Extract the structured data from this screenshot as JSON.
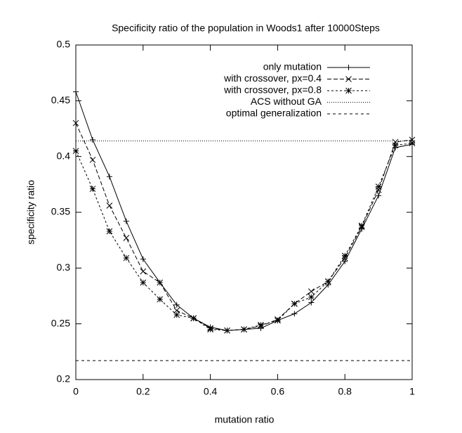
{
  "chart_data": {
    "type": "line",
    "title": "Specificity ratio of the population in Woods1 after 10000Steps",
    "x_label": "mutation ratio",
    "y_label": "specificity ratio",
    "x": [
      0,
      0.05,
      0.1,
      0.15,
      0.2,
      0.25,
      0.3,
      0.35,
      0.4,
      0.45,
      0.5,
      0.55,
      0.6,
      0.65,
      0.7,
      0.75,
      0.8,
      0.85,
      0.9,
      0.95,
      1
    ],
    "xlim": [
      0,
      1
    ],
    "xticks": [
      0,
      0.2,
      0.4,
      0.6,
      0.8,
      1
    ],
    "ylim": [
      0.2,
      0.5
    ],
    "yticks": [
      0.2,
      0.25,
      0.3,
      0.35,
      0.4,
      0.45,
      0.5
    ],
    "legend": "top-right",
    "series": [
      {
        "name": "only mutation",
        "color": "#000000",
        "dash": "none",
        "marker": "plus",
        "values": [
          0.458,
          0.415,
          0.382,
          0.342,
          0.308,
          0.287,
          0.267,
          0.255,
          0.247,
          0.244,
          0.245,
          0.246,
          0.253,
          0.259,
          0.269,
          0.285,
          0.306,
          0.335,
          0.365,
          0.408,
          0.411
        ]
      },
      {
        "name": "with crossover, px=0.4",
        "color": "#000000",
        "dash": "6,3",
        "marker": "cross",
        "values": [
          0.43,
          0.397,
          0.356,
          0.327,
          0.297,
          0.287,
          0.262,
          0.255,
          0.246,
          0.244,
          0.245,
          0.248,
          0.254,
          0.268,
          0.279,
          0.288,
          0.309,
          0.337,
          0.37,
          0.413,
          0.415
        ]
      },
      {
        "name": "with crossover, px=0.8",
        "color": "#000000",
        "dash": "3,3",
        "marker": "star",
        "values": [
          0.405,
          0.371,
          0.333,
          0.309,
          0.287,
          0.272,
          0.258,
          0.255,
          0.245,
          0.244,
          0.245,
          0.249,
          0.253,
          0.268,
          0.274,
          0.288,
          0.311,
          0.338,
          0.373,
          0.41,
          0.412
        ]
      },
      {
        "name": "ACS without GA",
        "color": "#000000",
        "dash": "1,2",
        "marker": "none",
        "x": [
          0,
          1
        ],
        "values": [
          0.414,
          0.414
        ]
      },
      {
        "name": "optimal generalization",
        "color": "#000000",
        "dash": "4,4",
        "marker": "none",
        "x": [
          0,
          1
        ],
        "values": [
          0.217,
          0.217
        ]
      }
    ]
  }
}
